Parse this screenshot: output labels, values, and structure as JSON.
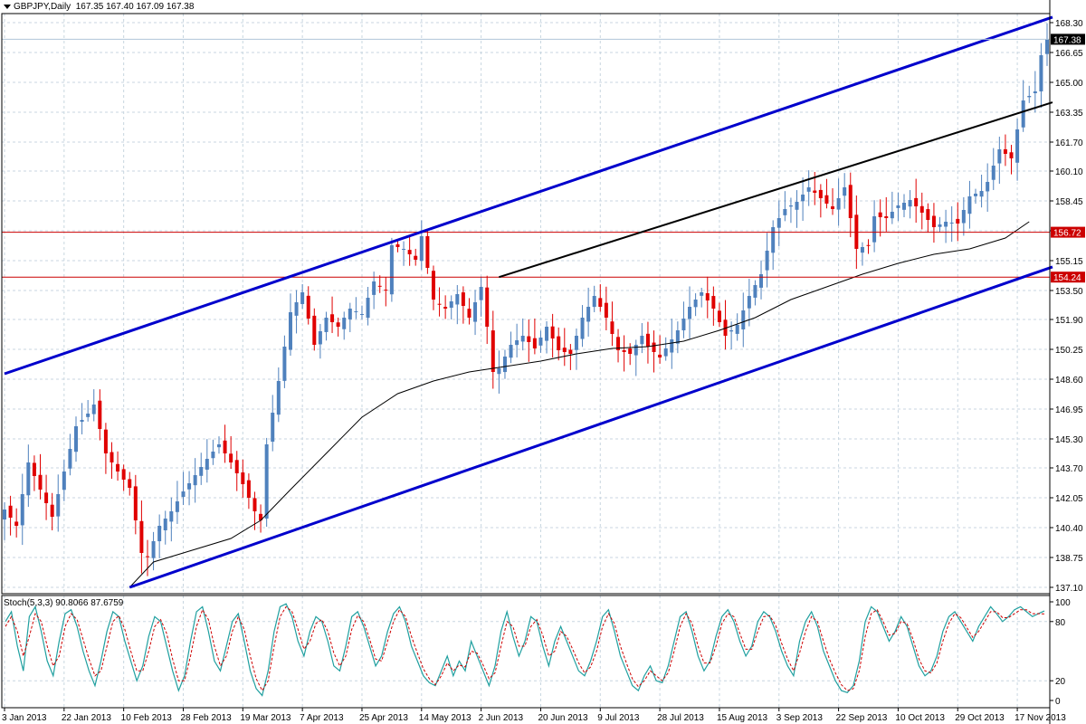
{
  "header": {
    "symbol": "GBPJPY,Daily",
    "ohlc": "167.35 167.40 167.09 167.38"
  },
  "stoch_header": {
    "label": "Stoch(5,3,3)",
    "values": "90.8066 87.6759"
  },
  "colors": {
    "bull_candle": "#4f81bd",
    "bear_candle": "#e00000",
    "channel": "#0000cc",
    "trendline": "#000000",
    "moving_average": "#000000",
    "horizontal_level": "#cc0000",
    "grid": "#c8d6e0",
    "stoch_main": "#20a0a0",
    "stoch_signal": "#cc0000"
  },
  "chart_data": [
    {
      "type": "candlestick",
      "title": "GBPJPY,Daily",
      "x_labels": [
        "3 Jan 2013",
        "22 Jan 2013",
        "10 Feb 2013",
        "28 Feb 2013",
        "19 Mar 2013",
        "7 Apr 2013",
        "25 Apr 2013",
        "14 May 2013",
        "2 Jun 2013",
        "20 Jun 2013",
        "9 Jul 2013",
        "28 Jul 2013",
        "15 Aug 2013",
        "3 Sep 2013",
        "22 Sep 2013",
        "10 Oct 2013",
        "29 Oct 2013",
        "17 Nov 2013"
      ],
      "y_ticks": [
        "168.30",
        "166.65",
        "165.00",
        "163.35",
        "161.70",
        "160.10",
        "158.45",
        "156.80",
        "155.15",
        "153.50",
        "151.90",
        "150.25",
        "148.60",
        "146.95",
        "145.30",
        "143.70",
        "142.05",
        "140.40",
        "138.75",
        "137.10"
      ],
      "ylim": [
        137.1,
        168.3
      ],
      "current_price": "167.38",
      "horizontal_levels": [
        "156.72",
        "154.24"
      ],
      "close_path": [
        [
          0,
          141.4
        ],
        [
          2,
          140.5
        ],
        [
          4,
          144.0
        ],
        [
          6,
          142.5
        ],
        [
          8,
          141.0
        ],
        [
          10,
          143.5
        ],
        [
          12,
          146.0
        ],
        [
          14,
          146.7
        ],
        [
          15,
          147.2
        ],
        [
          17,
          144.5
        ],
        [
          19,
          143.5
        ],
        [
          21,
          142.6
        ],
        [
          23,
          139.0
        ],
        [
          24,
          138.8
        ],
        [
          26,
          140.5
        ],
        [
          28,
          141.3
        ],
        [
          30,
          142.4
        ],
        [
          32,
          143.3
        ],
        [
          34,
          144.2
        ],
        [
          36,
          145.0
        ],
        [
          38,
          144.0
        ],
        [
          40,
          142.8
        ],
        [
          42,
          141.3
        ],
        [
          43,
          140.8
        ],
        [
          44,
          145.0
        ],
        [
          46,
          148.5
        ],
        [
          48,
          152.3
        ],
        [
          50,
          153.4
        ],
        [
          52,
          150.5
        ],
        [
          54,
          152.0
        ],
        [
          56,
          151.5
        ],
        [
          58,
          152.5
        ],
        [
          60,
          152.2
        ],
        [
          62,
          154.0
        ],
        [
          64,
          153.5
        ],
        [
          65,
          156.0
        ],
        [
          67,
          155.8
        ],
        [
          69,
          155.2
        ],
        [
          70,
          156.5
        ],
        [
          72,
          153.0
        ],
        [
          74,
          152.5
        ],
        [
          76,
          153.3
        ],
        [
          78,
          152.0
        ],
        [
          80,
          153.7
        ],
        [
          81,
          151.5
        ],
        [
          82,
          149.0
        ],
        [
          83,
          149.2
        ],
        [
          85,
          150.5
        ],
        [
          87,
          151.0
        ],
        [
          89,
          150.3
        ],
        [
          91,
          151.5
        ],
        [
          93,
          150.2
        ],
        [
          95,
          150.0
        ],
        [
          97,
          152.0
        ],
        [
          99,
          153.2
        ],
        [
          101,
          152.0
        ],
        [
          103,
          150.2
        ],
        [
          105,
          150.0
        ],
        [
          107,
          151.0
        ],
        [
          108,
          150.4
        ],
        [
          110,
          149.8
        ],
        [
          111,
          150.3
        ],
        [
          113,
          151.3
        ],
        [
          115,
          152.6
        ],
        [
          117,
          153.4
        ],
        [
          119,
          152.5
        ],
        [
          121,
          151.0
        ],
        [
          123,
          151.6
        ],
        [
          125,
          153.2
        ],
        [
          127,
          154.4
        ],
        [
          129,
          157.0
        ],
        [
          131,
          158.0
        ],
        [
          133,
          158.4
        ],
        [
          135,
          159.2
        ],
        [
          137,
          158.6
        ],
        [
          139,
          158.0
        ],
        [
          141,
          159.2
        ],
        [
          142,
          157.5
        ],
        [
          143,
          155.8
        ],
        [
          145,
          156.0
        ],
        [
          146,
          157.6
        ],
        [
          148,
          157.5
        ],
        [
          150,
          158.2
        ],
        [
          152,
          158.5
        ],
        [
          154,
          157.8
        ],
        [
          156,
          157.0
        ],
        [
          158,
          157.3
        ],
        [
          160,
          157.2
        ],
        [
          162,
          158.7
        ],
        [
          164,
          159.0
        ],
        [
          165,
          159.5
        ],
        [
          167,
          161.3
        ],
        [
          169,
          160.8
        ],
        [
          171,
          164.0
        ],
        [
          173,
          164.5
        ],
        [
          174,
          166.5
        ],
        [
          175,
          167.38
        ]
      ],
      "ma_path": [
        [
          21,
          137.1
        ],
        [
          25,
          138.5
        ],
        [
          30,
          139.0
        ],
        [
          38,
          139.8
        ],
        [
          43,
          140.8
        ],
        [
          48,
          142.5
        ],
        [
          54,
          144.5
        ],
        [
          60,
          146.5
        ],
        [
          66,
          147.8
        ],
        [
          72,
          148.5
        ],
        [
          78,
          149.0
        ],
        [
          84,
          149.3
        ],
        [
          90,
          149.6
        ],
        [
          96,
          150.0
        ],
        [
          102,
          150.3
        ],
        [
          108,
          150.4
        ],
        [
          114,
          150.7
        ],
        [
          120,
          151.3
        ],
        [
          126,
          152.0
        ],
        [
          132,
          153.0
        ],
        [
          138,
          153.7
        ],
        [
          144,
          154.4
        ],
        [
          150,
          155.0
        ],
        [
          156,
          155.5
        ],
        [
          162,
          155.8
        ],
        [
          168,
          156.4
        ],
        [
          172,
          157.3
        ]
      ],
      "channel_upper": [
        [
          0,
          148.9
        ],
        [
          175,
          168.5
        ]
      ],
      "channel_lower": [
        [
          21,
          137.1
        ],
        [
          175,
          154.7
        ]
      ],
      "trendline": [
        [
          83,
          154.24
        ],
        [
          175,
          163.8
        ]
      ]
    },
    {
      "type": "line",
      "title": "Stoch(5,3,3)",
      "y_ticks": [
        "100",
        "80",
        "20",
        "0"
      ],
      "ylim": [
        0,
        100
      ],
      "series": [
        {
          "values": [
            80,
            90,
            55,
            30,
            85,
            95,
            70,
            40,
            25,
            60,
            88,
            92,
            75,
            50,
            30,
            15,
            40,
            70,
            90,
            85,
            60,
            40,
            20,
            35,
            65,
            85,
            80,
            55,
            30,
            10,
            25,
            60,
            90,
            95,
            70,
            40,
            30,
            55,
            80,
            88,
            60,
            30,
            12,
            5,
            30,
            70,
            95,
            98,
            85,
            60,
            45,
            70,
            85,
            80,
            60,
            35,
            30,
            55,
            85,
            90,
            75,
            55,
            35,
            45,
            70,
            88,
            95,
            80,
            55,
            40,
            25,
            18,
            15,
            30,
            45,
            25,
            40,
            30,
            60,
            45,
            30,
            15,
            35,
            70,
            90,
            65,
            45,
            60,
            85,
            80,
            55,
            35,
            60,
            75,
            60,
            45,
            30,
            25,
            40,
            60,
            85,
            92,
            70,
            45,
            30,
            15,
            10,
            25,
            35,
            20,
            18,
            35,
            60,
            85,
            90,
            70,
            45,
            30,
            40,
            65,
            85,
            92,
            80,
            60,
            45,
            55,
            80,
            90,
            85,
            70,
            50,
            35,
            25,
            60,
            80,
            90,
            75,
            50,
            35,
            20,
            10,
            8,
            15,
            40,
            80,
            95,
            90,
            75,
            60,
            70,
            85,
            75,
            55,
            35,
            25,
            30,
            45,
            70,
            85,
            90,
            80,
            70,
            60,
            75,
            85,
            95,
            88,
            80,
            85,
            92,
            95,
            90,
            85,
            88,
            90.8
          ]
        },
        {
          "values": [
            75,
            85,
            70,
            45,
            65,
            88,
            80,
            55,
            35,
            45,
            75,
            88,
            82,
            62,
            42,
            25,
            30,
            55,
            80,
            86,
            72,
            50,
            30,
            30,
            50,
            75,
            82,
            68,
            42,
            20,
            20,
            45,
            75,
            92,
            82,
            55,
            35,
            45,
            70,
            85,
            72,
            45,
            22,
            10,
            20,
            55,
            85,
            95,
            90,
            72,
            52,
            60,
            78,
            82,
            70,
            48,
            35,
            45,
            72,
            86,
            80,
            62,
            42,
            40,
            60,
            80,
            92,
            85,
            65,
            48,
            32,
            22,
            16,
            25,
            38,
            30,
            36,
            34,
            50,
            48,
            36,
            22,
            28,
            55,
            80,
            75,
            55,
            55,
            75,
            82,
            66,
            45,
            50,
            70,
            65,
            52,
            38,
            28,
            34,
            50,
            75,
            88,
            78,
            55,
            38,
            22,
            14,
            20,
            30,
            25,
            20,
            28,
            50,
            75,
            88,
            78,
            55,
            38,
            38,
            55,
            78,
            88,
            85,
            68,
            52,
            52,
            70,
            85,
            86,
            76,
            58,
            42,
            30,
            48,
            70,
            85,
            80,
            60,
            42,
            28,
            16,
            10,
            12,
            30,
            65,
            88,
            92,
            80,
            66,
            68,
            80,
            78,
            62,
            42,
            30,
            28,
            38,
            60,
            78,
            88,
            84,
            74,
            64,
            70,
            80,
            90,
            90,
            84,
            84,
            88,
            92,
            92,
            88,
            88,
            87.7
          ]
        }
      ]
    }
  ]
}
